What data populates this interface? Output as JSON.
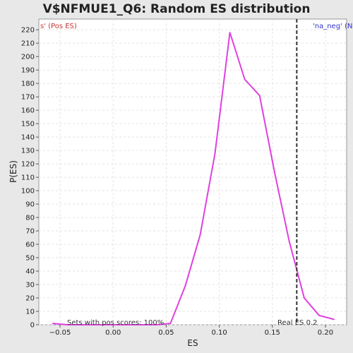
{
  "chart_data": {
    "type": "line",
    "title": "V$NFMUE1_Q6: Random ES distribution",
    "xlabel": "ES",
    "ylabel": "P(ES)",
    "xlim": [
      -0.07,
      0.22
    ],
    "ylim": [
      0,
      228
    ],
    "x_ticks": [
      -0.05,
      0.0,
      0.05,
      0.1,
      0.15,
      0.2
    ],
    "x_tick_labels": [
      "−0.05",
      "0.00",
      "0.05",
      "0.10",
      "0.15",
      "0.20"
    ],
    "y_ticks": [
      0,
      10,
      20,
      30,
      40,
      50,
      60,
      70,
      80,
      90,
      100,
      110,
      120,
      130,
      140,
      150,
      160,
      170,
      180,
      190,
      200,
      210,
      220
    ],
    "grid": true,
    "series": [
      {
        "color": "#e040e0",
        "x": [
          -0.057,
          -0.043,
          -0.029,
          -0.015,
          -0.001,
          0.013,
          0.027,
          0.041,
          0.054,
          0.068,
          0.082,
          0.096,
          0.11,
          0.124,
          0.138,
          0.152,
          0.166,
          0.18,
          0.194,
          0.208
        ],
        "y": [
          1,
          0,
          0,
          0,
          0,
          0,
          0,
          0,
          1,
          29,
          67,
          128,
          218,
          183,
          171,
          114,
          62,
          20,
          7,
          4
        ]
      }
    ],
    "real_es": 0.173,
    "annotations": {
      "left_label": "s' (Pos ES)",
      "right_label": "'na_neg' (N",
      "bottom_left": "Sets with pos scores: 100%",
      "bottom_right": "Real ES 0.2"
    },
    "colors": {
      "pos_label": "#cc3333",
      "neg_label": "#3333cc",
      "line": "#e040e0",
      "real_es_line": "#333333"
    }
  }
}
